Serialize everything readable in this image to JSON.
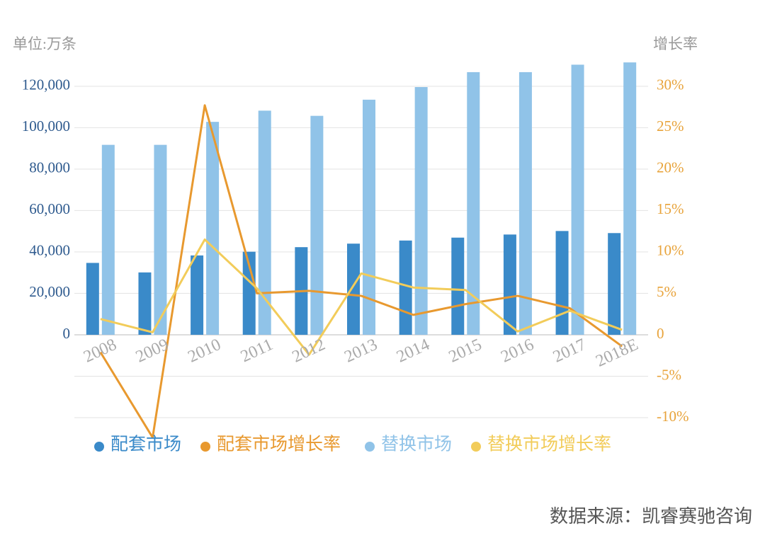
{
  "chart_data": {
    "type": "bar",
    "y_axis_label": "单位:万条",
    "y2_axis_label": "增长率",
    "source": "数据来源：凯睿赛驰咨询",
    "categories": [
      "2008",
      "2009",
      "2010",
      "2011",
      "2012",
      "2013",
      "2014",
      "2015",
      "2016",
      "2017",
      "2018E"
    ],
    "series": [
      {
        "name": "配套市场",
        "type": "bar",
        "color": "#3a8ac9",
        "values": [
          34700,
          30100,
          38300,
          40100,
          42300,
          44000,
          45500,
          46900,
          48400,
          50100,
          49100
        ]
      },
      {
        "name": "配套市场增长率",
        "type": "line",
        "axis": "y2",
        "color": "#e8992f",
        "values": [
          -2.1,
          -12.4,
          27.7,
          5.0,
          5.3,
          4.7,
          2.4,
          3.7,
          4.7,
          3.2,
          -1.4
        ]
      },
      {
        "name": "替换市场",
        "type": "bar",
        "color": "#90c3e8",
        "values": [
          91700,
          91700,
          102800,
          108200,
          105700,
          113500,
          119600,
          126800,
          126800,
          130400,
          131500
        ]
      },
      {
        "name": "替换市场增长率",
        "type": "line",
        "axis": "y2",
        "color": "#f2cc5a",
        "values": [
          1.9,
          0.3,
          11.5,
          5.6,
          -2.4,
          7.4,
          5.7,
          5.4,
          0.4,
          2.9,
          0.6
        ]
      }
    ],
    "ylim": [
      -40000,
      136000
    ],
    "yticks": [
      0,
      {
        "value": 20000,
        "label": "20,000"
      },
      {
        "value": 40000,
        "label": "40,000"
      },
      {
        "value": 60000,
        "label": "60,000"
      },
      {
        "value": 80000,
        "label": "80,000"
      },
      {
        "value": 100000,
        "label": "100,000"
      },
      {
        "value": 120000,
        "label": "120,000"
      }
    ],
    "y2lim": [
      -10,
      34
    ],
    "y2ticks": [
      {
        "value": -10,
        "label": "-10%"
      },
      {
        "value": -5,
        "label": "-5%"
      },
      0,
      {
        "value": 5,
        "label": "5%"
      },
      {
        "value": 10,
        "label": "10%"
      },
      {
        "value": 15,
        "label": "15%"
      },
      {
        "value": 20,
        "label": "20%"
      },
      {
        "value": 25,
        "label": "25%"
      },
      {
        "value": 30,
        "label": "30%"
      }
    ],
    "grid": true,
    "legend": "bottom"
  }
}
